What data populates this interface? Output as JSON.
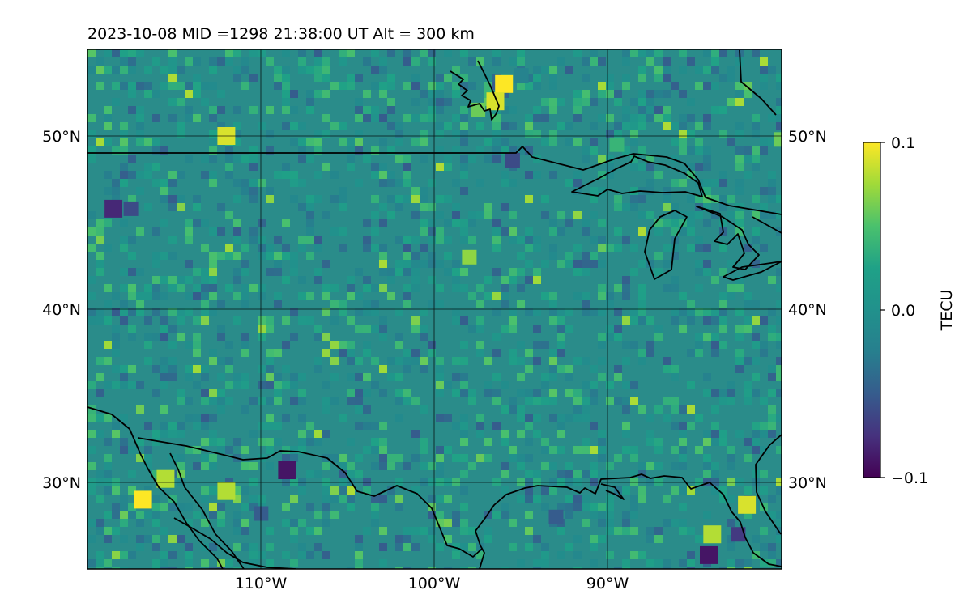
{
  "title": "2023-10-08  MID =1298    21:38:00  UT  Alt = 300 km",
  "map": {
    "lon_range": [
      -120,
      -80
    ],
    "lat_range": [
      25,
      55
    ],
    "lon_ticks": [
      {
        "value": -110,
        "label": "110°W"
      },
      {
        "value": -100,
        "label": "100°W"
      },
      {
        "value": -90,
        "label": "90°W"
      }
    ],
    "lat_ticks": [
      {
        "value": 50,
        "label": "50°N"
      },
      {
        "value": 40,
        "label": "40°N"
      },
      {
        "value": 30,
        "label": "30°N"
      }
    ],
    "gridlines": true,
    "labels_on_left_and_right": true
  },
  "colorbar": {
    "label": "TECU",
    "colormap": "viridis",
    "ticks": [
      {
        "value": 0.1,
        "label": "0.1"
      },
      {
        "value": 0.0,
        "label": "0.0"
      },
      {
        "value": -0.1,
        "label": "−0.1"
      }
    ],
    "range": [
      -0.1,
      0.1
    ]
  },
  "colors": {
    "field_median": "#2a8c8a",
    "coastline": "#000000",
    "anomaly_high": "#fde725",
    "anomaly_low": "#440154"
  },
  "chart_data": {
    "type": "heatmap",
    "quantity": "TEC anomaly",
    "units": "TECU",
    "value_range": [
      -0.1,
      0.1
    ],
    "background_value": 0.0,
    "notable_features": [
      {
        "lon": -96.0,
        "lat": 53.0,
        "value": 0.1
      },
      {
        "lon": -96.5,
        "lat": 52.0,
        "value": 0.09
      },
      {
        "lon": -97.5,
        "lat": 51.5,
        "value": 0.06
      },
      {
        "lon": -95.0,
        "lat": 53.5,
        "value": -0.02
      },
      {
        "lon": -112.0,
        "lat": 50.0,
        "value": 0.09
      },
      {
        "lon": -116.8,
        "lat": 29.0,
        "value": 0.1
      },
      {
        "lon": -112.0,
        "lat": 29.5,
        "value": 0.08
      },
      {
        "lon": -115.5,
        "lat": 30.2,
        "value": 0.08
      },
      {
        "lon": -108.5,
        "lat": 30.7,
        "value": -0.09
      },
      {
        "lon": -110.0,
        "lat": 28.2,
        "value": -0.05
      },
      {
        "lon": -98.0,
        "lat": 43.0,
        "value": 0.07
      },
      {
        "lon": -84.0,
        "lat": 27.0,
        "value": 0.08
      },
      {
        "lon": -82.0,
        "lat": 28.7,
        "value": 0.09
      },
      {
        "lon": -84.2,
        "lat": 25.8,
        "value": -0.09
      },
      {
        "lon": -82.5,
        "lat": 27.0,
        "value": -0.07
      },
      {
        "lon": -118.5,
        "lat": 45.8,
        "value": -0.08
      },
      {
        "lon": -117.5,
        "lat": 45.8,
        "value": -0.06
      },
      {
        "lon": -93.0,
        "lat": 28.0,
        "value": -0.05
      },
      {
        "lon": -95.5,
        "lat": 48.6,
        "value": -0.06
      },
      {
        "lon": -89.5,
        "lat": 49.5,
        "value": 0.04
      },
      {
        "lon": -80.0,
        "lat": 49.8,
        "value": 0.06
      }
    ]
  }
}
